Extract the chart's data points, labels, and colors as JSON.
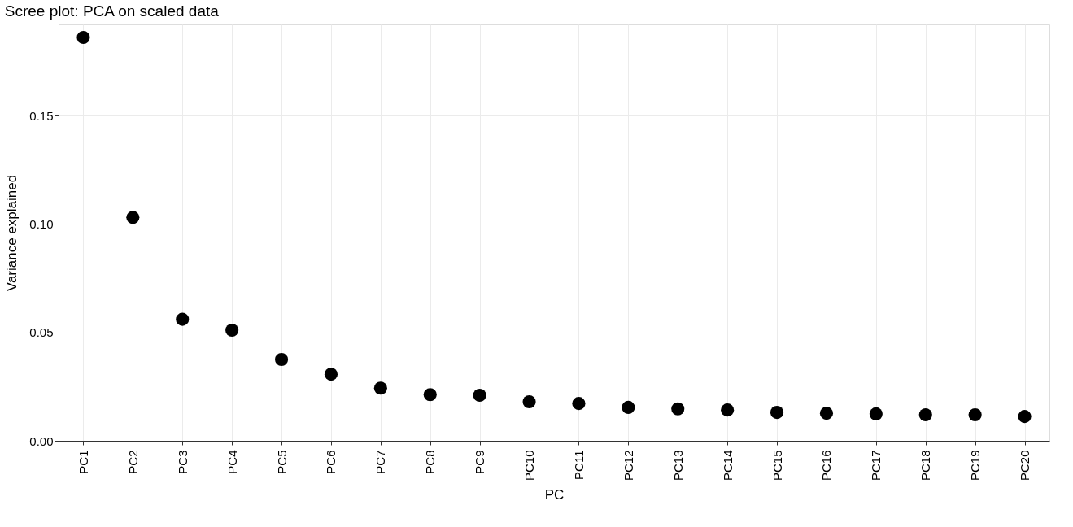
{
  "chart_data": {
    "type": "scatter",
    "title": "Scree plot: PCA on scaled data",
    "xlabel": "PC",
    "ylabel": "Variance explained",
    "categories": [
      "PC1",
      "PC2",
      "PC3",
      "PC4",
      "PC5",
      "PC6",
      "PC7",
      "PC8",
      "PC9",
      "PC10",
      "PC11",
      "PC12",
      "PC13",
      "PC14",
      "PC15",
      "PC16",
      "PC17",
      "PC18",
      "PC19",
      "PC20"
    ],
    "series": [
      {
        "color": "#000000",
        "values": [
          0.186,
          0.103,
          0.056,
          0.051,
          0.0375,
          0.0307,
          0.0243,
          0.0213,
          0.021,
          0.018,
          0.0172,
          0.0154,
          0.0147,
          0.0142,
          0.0131,
          0.0127,
          0.0124,
          0.012,
          0.012,
          0.0112
        ]
      }
    ],
    "ylim": [
      0,
      0.192
    ],
    "yticks": [
      {
        "value": 0,
        "label": "0.00"
      },
      0.05,
      {
        "value": 0.1,
        "label": "0.10"
      },
      0.15
    ],
    "grid": true,
    "marker": "circle",
    "legend": false
  }
}
